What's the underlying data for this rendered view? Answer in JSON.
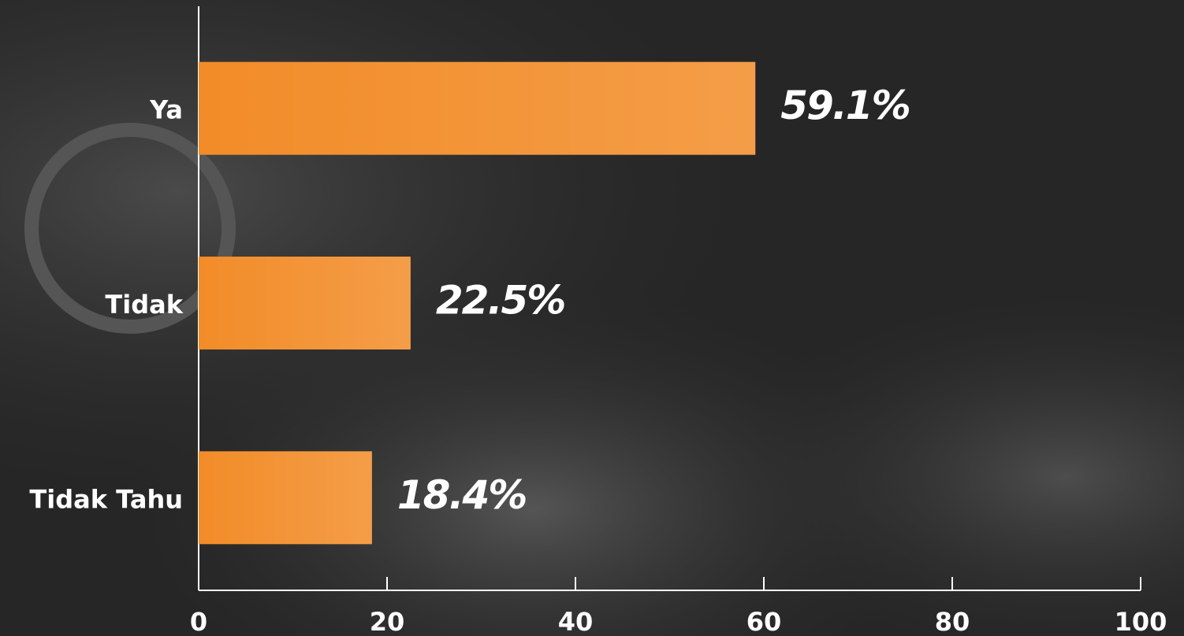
{
  "chart_data": {
    "type": "bar",
    "orientation": "horizontal",
    "categories": [
      "Ya",
      "Tidak",
      "Tidak Tahu"
    ],
    "values": [
      59.1,
      22.5,
      18.4
    ],
    "value_labels": [
      "59.1%",
      "22.5%",
      "18.4%"
    ],
    "color": "#f28c28",
    "xlim": [
      0,
      100
    ],
    "xticks": [
      0,
      20,
      40,
      60,
      80,
      100
    ]
  }
}
